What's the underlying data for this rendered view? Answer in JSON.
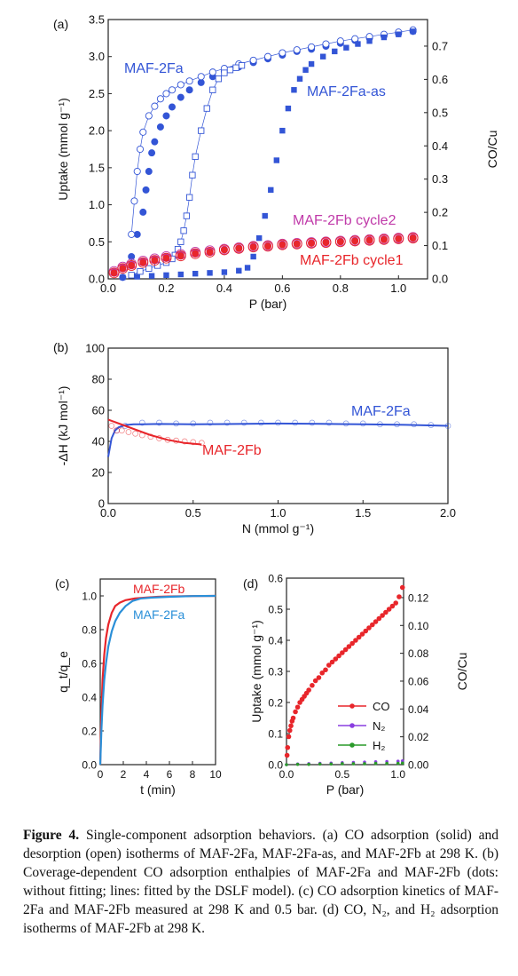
{
  "caption": {
    "label": "Figure 4.",
    "text": "Single-component adsorption behaviors. (a) CO adsorption (solid) and desorption (open) isotherms of MAF-2Fa, MAF-2Fa-as, and MAF-2Fb at 298 K. (b) Coverage-dependent CO adsorption enthalpies of MAF-2Fa and MAF-2Fb (dots: without fitting; lines: fitted by the DSLF model). (c) CO adsorption kinetics of MAF-2Fa and MAF-2Fb measured at 298 K and 0.5 bar. (d) CO, N₂, and H₂ adsorption isotherms of MAF-2Fb at 298 K."
  },
  "colors": {
    "blue": "#3355d6",
    "red": "#e8262b",
    "magenta": "#c03aa9",
    "lightblue": "#2a8fd8",
    "violet": "#8a3ee0",
    "green": "#2a9a2a"
  },
  "chart_data": [
    {
      "panel": "(a)",
      "type": "scatter",
      "xlabel": "P (bar)",
      "ylabel": "Uptake (mmol g⁻¹)",
      "y2label": "CO/Cu",
      "xlim": [
        0,
        1.1
      ],
      "ylim": [
        0,
        3.5
      ],
      "y2lim": [
        0,
        0.78
      ],
      "xticks": [
        "0.0",
        "0.2",
        "0.4",
        "0.6",
        "0.8",
        "1.0"
      ],
      "yticks": [
        "0.0",
        "0.5",
        "1.0",
        "1.5",
        "2.0",
        "2.5",
        "3.0",
        "3.5"
      ],
      "y2ticks": [
        "0.0",
        "0.1",
        "0.2",
        "0.3",
        "0.4",
        "0.5",
        "0.6",
        "0.7"
      ],
      "labels": {
        "fa": "MAF-2Fa",
        "fas": "MAF-2Fa-as",
        "fb2": "MAF-2Fb cycle2",
        "fb1": "MAF-2Fb cycle1"
      },
      "series": [
        {
          "name": "MAF-2Fa",
          "branch": "adsorption",
          "marker": "filled-circle",
          "color": "#3355d6",
          "x": [
            0.05,
            0.08,
            0.1,
            0.12,
            0.13,
            0.14,
            0.15,
            0.16,
            0.18,
            0.2,
            0.22,
            0.25,
            0.28,
            0.32,
            0.36,
            0.4,
            0.45,
            0.5,
            0.55,
            0.6,
            0.65,
            0.7,
            0.75,
            0.8,
            0.85,
            0.9,
            0.95,
            1.0,
            1.05
          ],
          "y": [
            0.02,
            0.3,
            0.6,
            0.9,
            1.2,
            1.45,
            1.7,
            1.85,
            2.05,
            2.2,
            2.32,
            2.45,
            2.55,
            2.65,
            2.73,
            2.8,
            2.86,
            2.92,
            2.97,
            3.02,
            3.07,
            3.1,
            3.14,
            3.18,
            3.22,
            3.25,
            3.28,
            3.31,
            3.34
          ]
        },
        {
          "name": "MAF-2Fa",
          "branch": "desorption",
          "marker": "open-circle",
          "color": "#3355d6",
          "x": [
            1.05,
            1.0,
            0.95,
            0.9,
            0.85,
            0.8,
            0.75,
            0.7,
            0.65,
            0.6,
            0.55,
            0.5,
            0.45,
            0.4,
            0.36,
            0.32,
            0.28,
            0.25,
            0.22,
            0.2,
            0.18,
            0.16,
            0.14,
            0.12,
            0.11,
            0.1,
            0.09,
            0.08
          ],
          "y": [
            3.36,
            3.33,
            3.3,
            3.27,
            3.24,
            3.21,
            3.17,
            3.13,
            3.09,
            3.05,
            3.0,
            2.95,
            2.9,
            2.84,
            2.79,
            2.73,
            2.67,
            2.62,
            2.55,
            2.5,
            2.43,
            2.33,
            2.2,
            1.98,
            1.75,
            1.45,
            1.05,
            0.6
          ]
        },
        {
          "name": "MAF-2Fa-as",
          "branch": "adsorption",
          "marker": "filled-square",
          "color": "#3355d6",
          "x": [
            0.05,
            0.1,
            0.15,
            0.2,
            0.25,
            0.3,
            0.35,
            0.4,
            0.45,
            0.48,
            0.5,
            0.52,
            0.54,
            0.56,
            0.58,
            0.6,
            0.62,
            0.64,
            0.66,
            0.68,
            0.7,
            0.74,
            0.78,
            0.82,
            0.86,
            0.9,
            0.95,
            1.0,
            1.05
          ],
          "y": [
            0.02,
            0.03,
            0.04,
            0.05,
            0.06,
            0.07,
            0.08,
            0.09,
            0.11,
            0.15,
            0.3,
            0.55,
            0.85,
            1.2,
            1.6,
            2.0,
            2.3,
            2.55,
            2.7,
            2.82,
            2.9,
            3.0,
            3.07,
            3.12,
            3.17,
            3.21,
            3.26,
            3.3,
            3.34
          ]
        },
        {
          "name": "MAF-2Fa-as",
          "branch": "desorption",
          "marker": "open-square",
          "color": "#3355d6",
          "x": [
            0.46,
            0.44,
            0.42,
            0.4,
            0.38,
            0.36,
            0.34,
            0.32,
            0.3,
            0.29,
            0.28,
            0.27,
            0.26,
            0.25,
            0.24,
            0.23,
            0.22,
            0.2,
            0.17,
            0.14,
            0.11,
            0.08
          ],
          "y": [
            2.88,
            2.85,
            2.82,
            2.78,
            2.7,
            2.55,
            2.3,
            2.0,
            1.65,
            1.4,
            1.1,
            0.85,
            0.65,
            0.5,
            0.4,
            0.32,
            0.27,
            0.22,
            0.18,
            0.14,
            0.1,
            0.05
          ]
        },
        {
          "name": "MAF-2Fb cycle2",
          "marker": "filled-circle",
          "color": "#c03aa9",
          "x": [
            0.02,
            0.05,
            0.08,
            0.12,
            0.16,
            0.2,
            0.25,
            0.3,
            0.35,
            0.4,
            0.45,
            0.5,
            0.55,
            0.6,
            0.65,
            0.7,
            0.75,
            0.8,
            0.85,
            0.9,
            0.95,
            1.0,
            1.05
          ],
          "y": [
            0.1,
            0.16,
            0.2,
            0.24,
            0.27,
            0.3,
            0.33,
            0.36,
            0.38,
            0.4,
            0.42,
            0.44,
            0.45,
            0.47,
            0.48,
            0.49,
            0.5,
            0.51,
            0.52,
            0.53,
            0.54,
            0.55,
            0.56
          ]
        },
        {
          "name": "MAF-2Fb cycle1",
          "marker": "filled-circle",
          "color": "#e8262b",
          "x": [
            0.02,
            0.05,
            0.08,
            0.12,
            0.16,
            0.2,
            0.25,
            0.3,
            0.35,
            0.4,
            0.45,
            0.5,
            0.55,
            0.6,
            0.65,
            0.7,
            0.75,
            0.8,
            0.85,
            0.9,
            0.95,
            1.0,
            1.05
          ],
          "y": [
            0.08,
            0.14,
            0.18,
            0.22,
            0.25,
            0.28,
            0.31,
            0.34,
            0.36,
            0.39,
            0.41,
            0.43,
            0.44,
            0.46,
            0.47,
            0.48,
            0.49,
            0.5,
            0.51,
            0.52,
            0.53,
            0.54,
            0.55
          ]
        }
      ]
    },
    {
      "panel": "(b)",
      "type": "line",
      "xlabel": "N (mmol g⁻¹)",
      "ylabel": "-ΔH (kJ mol⁻¹)",
      "xlim": [
        0,
        2.0
      ],
      "ylim": [
        0,
        100
      ],
      "xticks": [
        "0.0",
        "0.5",
        "1.0",
        "1.5",
        "2.0"
      ],
      "yticks": [
        "0",
        "20",
        "40",
        "60",
        "80",
        "100"
      ],
      "labels": {
        "fa": "MAF-2Fa",
        "fb": "MAF-2Fb"
      },
      "series": [
        {
          "name": "MAF-2Fa",
          "kind": "fit",
          "color": "#3355d6",
          "x": [
            0.0,
            0.01,
            0.02,
            0.04,
            0.06,
            0.1,
            0.15,
            0.2,
            0.3,
            0.5,
            0.75,
            1.0,
            1.25,
            1.5,
            1.75,
            2.0
          ],
          "y": [
            30,
            36,
            42,
            47,
            49,
            50.5,
            51,
            51,
            51.2,
            51,
            51.2,
            51.5,
            51.3,
            51,
            50.6,
            50
          ]
        },
        {
          "name": "MAF-2Fa",
          "kind": "dots",
          "color": "#3355d6",
          "x": [
            0.05,
            0.1,
            0.2,
            0.3,
            0.4,
            0.5,
            0.6,
            0.7,
            0.8,
            0.9,
            1.0,
            1.1,
            1.2,
            1.3,
            1.4,
            1.5,
            1.6,
            1.7,
            1.8,
            1.9,
            2.0
          ],
          "y": [
            47,
            50,
            52,
            52,
            51.5,
            51.5,
            52,
            52,
            52,
            52,
            52,
            52,
            52,
            52,
            51.5,
            51.5,
            51,
            51,
            51,
            50.5,
            50
          ]
        },
        {
          "name": "MAF-2Fb",
          "kind": "fit",
          "color": "#e8262b",
          "x": [
            0.0,
            0.05,
            0.1,
            0.15,
            0.2,
            0.25,
            0.3,
            0.35,
            0.4,
            0.45,
            0.5,
            0.55
          ],
          "y": [
            54,
            52,
            50,
            48,
            46,
            44,
            42.5,
            41,
            40,
            39,
            38.5,
            38
          ]
        },
        {
          "name": "MAF-2Fb",
          "kind": "dots",
          "color": "#e8262b",
          "x": [
            0.02,
            0.05,
            0.08,
            0.12,
            0.16,
            0.2,
            0.25,
            0.3,
            0.35,
            0.4,
            0.45,
            0.5,
            0.55
          ],
          "y": [
            50,
            47,
            47,
            46,
            45,
            44,
            43,
            42,
            41,
            40.5,
            40,
            39.5,
            39
          ]
        }
      ]
    },
    {
      "panel": "(c)",
      "type": "line",
      "xlabel": "t (min)",
      "ylabel": "q_t/q_e",
      "xlim": [
        0,
        10
      ],
      "ylim": [
        0,
        1.1
      ],
      "xticks": [
        "0",
        "2",
        "4",
        "6",
        "8",
        "10"
      ],
      "yticks": [
        "0.0",
        "0.2",
        "0.4",
        "0.6",
        "0.8",
        "1.0"
      ],
      "labels": {
        "fb": "MAF-2Fb",
        "fa": "MAF-2Fa"
      },
      "series": [
        {
          "name": "MAF-2Fb",
          "color": "#e8262b",
          "x": [
            0,
            0.1,
            0.2,
            0.35,
            0.5,
            0.7,
            1.0,
            1.3,
            1.7,
            2.2,
            3,
            4,
            5,
            6,
            8,
            10
          ],
          "y": [
            0,
            0.3,
            0.5,
            0.65,
            0.75,
            0.83,
            0.9,
            0.94,
            0.96,
            0.975,
            0.985,
            0.99,
            0.995,
            0.997,
            0.999,
            1.0
          ]
        },
        {
          "name": "MAF-2Fa",
          "color": "#2a8fd8",
          "x": [
            0,
            0.1,
            0.2,
            0.35,
            0.5,
            0.7,
            1.0,
            1.3,
            1.7,
            2.2,
            2.8,
            3.5,
            4.5,
            6,
            8,
            10
          ],
          "y": [
            0,
            0.2,
            0.35,
            0.5,
            0.6,
            0.7,
            0.79,
            0.85,
            0.9,
            0.94,
            0.97,
            0.985,
            0.99,
            0.995,
            0.999,
            1.0
          ]
        }
      ]
    },
    {
      "panel": "(d)",
      "type": "scatter",
      "xlabel": "P (bar)",
      "ylabel": "Uptake (mmol g⁻¹)",
      "y2label": "CO/Cu",
      "xlim": [
        0,
        1.05
      ],
      "ylim": [
        0,
        0.6
      ],
      "y2lim": [
        0,
        0.134
      ],
      "xticks": [
        "0.0",
        "0.5",
        "1.0"
      ],
      "yticks": [
        "0.0",
        "0.1",
        "0.2",
        "0.3",
        "0.4",
        "0.5",
        "0.6"
      ],
      "y2ticks": [
        "0.00",
        "0.02",
        "0.04",
        "0.06",
        "0.08",
        "0.10",
        "0.12"
      ],
      "legend": [
        "CO",
        "N₂",
        "H₂"
      ],
      "series": [
        {
          "name": "CO",
          "color": "#e8262b",
          "x": [
            0.005,
            0.01,
            0.02,
            0.03,
            0.04,
            0.05,
            0.06,
            0.08,
            0.1,
            0.12,
            0.14,
            0.16,
            0.18,
            0.2,
            0.23,
            0.26,
            0.29,
            0.32,
            0.35,
            0.38,
            0.41,
            0.44,
            0.47,
            0.5,
            0.53,
            0.56,
            0.59,
            0.62,
            0.65,
            0.68,
            0.71,
            0.74,
            0.77,
            0.8,
            0.83,
            0.86,
            0.89,
            0.92,
            0.95,
            0.98,
            1.01,
            1.04
          ],
          "y": [
            0.03,
            0.055,
            0.09,
            0.11,
            0.125,
            0.14,
            0.15,
            0.17,
            0.185,
            0.2,
            0.21,
            0.22,
            0.23,
            0.24,
            0.255,
            0.27,
            0.28,
            0.295,
            0.305,
            0.32,
            0.33,
            0.34,
            0.35,
            0.36,
            0.37,
            0.38,
            0.39,
            0.4,
            0.41,
            0.42,
            0.43,
            0.44,
            0.45,
            0.46,
            0.47,
            0.48,
            0.49,
            0.5,
            0.51,
            0.52,
            0.54,
            0.57
          ]
        },
        {
          "name": "N₂",
          "color": "#8a3ee0",
          "x": [
            0.0,
            0.1,
            0.2,
            0.3,
            0.4,
            0.5,
            0.6,
            0.7,
            0.8,
            0.9,
            1.0,
            1.04
          ],
          "y": [
            0.0,
            0.002,
            0.003,
            0.004,
            0.005,
            0.006,
            0.007,
            0.008,
            0.009,
            0.01,
            0.011,
            0.012
          ]
        },
        {
          "name": "H₂",
          "color": "#2a9a2a",
          "x": [
            0.0,
            0.1,
            0.2,
            0.3,
            0.4,
            0.5,
            0.6,
            0.7,
            0.8,
            0.9,
            1.0,
            1.04
          ],
          "y": [
            0.0,
            0.001,
            0.001,
            0.002,
            0.002,
            0.003,
            0.003,
            0.003,
            0.004,
            0.004,
            0.004,
            0.005
          ]
        }
      ]
    }
  ]
}
